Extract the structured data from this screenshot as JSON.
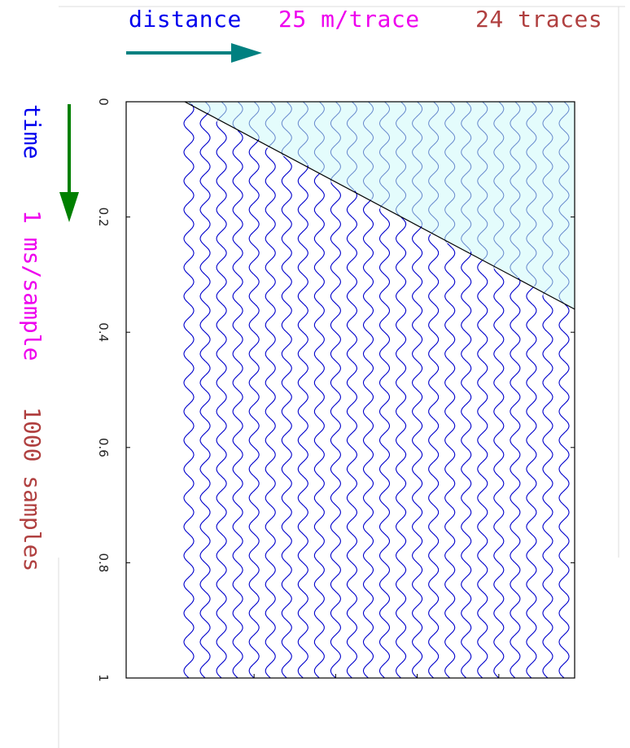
{
  "header": {
    "distance_label": "distance",
    "distance_rate": "25 m/trace",
    "trace_count": "24 traces"
  },
  "side": {
    "time_label": "time",
    "time_rate": "1 ms/sample",
    "sample_count": "1000 samples"
  },
  "colors": {
    "blue_text": "#0000ee",
    "magenta_text": "#ee00ee",
    "brown_text": "#b04040",
    "distance_arrow": "#008080",
    "time_arrow": "#008000",
    "trace_color": "#0000cc",
    "shade_fill": "#e4fcfc",
    "shade_trace": "#6688cc",
    "axis": "#000000"
  },
  "icons": {
    "distance_arrow": "right-arrow-icon",
    "time_arrow": "down-arrow-icon"
  },
  "chart_data": {
    "type": "line",
    "description_units": "seismic wiggle traces; trace index vs time (s)",
    "trace_count": 24,
    "trace_spacing_m": 25,
    "sample_interval_ms": 1,
    "samples": 1000,
    "time_axis": {
      "ylim": [
        0,
        1
      ],
      "ticks": [
        "0",
        "0.2",
        "0.4",
        "0.6",
        "0.8",
        "1"
      ],
      "tick_values": [
        0,
        0.2,
        0.4,
        0.6,
        0.8,
        1
      ]
    },
    "wavelet_period_s": 0.05,
    "direct_arrival": {
      "from": {
        "trace": 1,
        "time": 0
      },
      "to": {
        "trace": 24,
        "time": 0.36
      }
    },
    "grid": false
  }
}
